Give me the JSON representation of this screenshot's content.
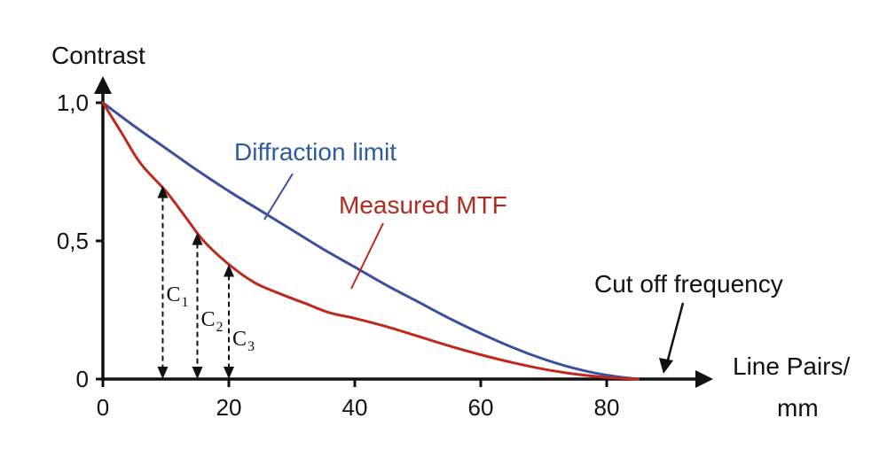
{
  "chart_data": {
    "type": "line",
    "title": "",
    "ylabel": "Contrast",
    "xlabel": "Line Pairs/",
    "xlabel_line2": "mm",
    "xlim": [
      0,
      92
    ],
    "ylim": [
      0,
      1.06
    ],
    "x_ticks": [
      0,
      20,
      40,
      60,
      80
    ],
    "x_tick_labels": [
      "0",
      "20",
      "40",
      "60",
      "80"
    ],
    "y_ticks": [
      0,
      0.5,
      1.0
    ],
    "y_tick_labels": [
      "0",
      "0,5",
      "1,0"
    ],
    "series": [
      {
        "name": "Diffraction limit",
        "color": "#3a4fa0",
        "x": [
          0,
          5,
          10,
          15,
          20,
          25,
          30,
          35,
          40,
          45,
          50,
          55,
          60,
          65,
          70,
          75,
          80,
          85
        ],
        "y": [
          1.0,
          0.915,
          0.835,
          0.755,
          0.68,
          0.61,
          0.54,
          0.47,
          0.405,
          0.34,
          0.28,
          0.22,
          0.165,
          0.115,
          0.072,
          0.038,
          0.014,
          0.0
        ]
      },
      {
        "name": "Measured MTF",
        "color": "#c0281e",
        "x": [
          0,
          3,
          6,
          10,
          13,
          16,
          20,
          24,
          28,
          32,
          36,
          40,
          45,
          50,
          55,
          60,
          65,
          70,
          75,
          80,
          85
        ],
        "y": [
          1.0,
          0.89,
          0.78,
          0.68,
          0.59,
          0.5,
          0.415,
          0.35,
          0.31,
          0.275,
          0.24,
          0.22,
          0.19,
          0.155,
          0.12,
          0.088,
          0.06,
          0.036,
          0.018,
          0.006,
          0.0
        ]
      }
    ],
    "annotations": {
      "diffraction_label": "Diffraction limit",
      "measured_label": "Measured MTF",
      "cutoff_label": "Cut off frequency",
      "cutoff_x": 85
    },
    "contrast_markers": [
      {
        "label": "C",
        "sub": "1",
        "x": 9.5,
        "y": 0.7
      },
      {
        "label": "C",
        "sub": "2",
        "x": 15,
        "y": 0.53
      },
      {
        "label": "C",
        "sub": "3",
        "x": 20,
        "y": 0.415
      }
    ]
  }
}
